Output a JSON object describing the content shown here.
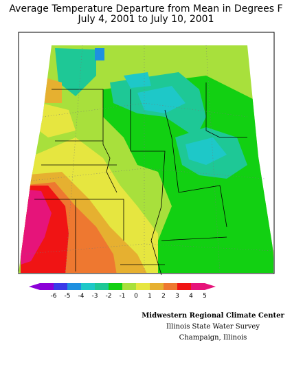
{
  "title": {
    "line1": "Average Temperature Departure from Mean in Degrees F",
    "line2": "July 4, 2001 to July 10, 2001"
  },
  "legend": {
    "ticks": [
      "-6",
      "-5",
      "-4",
      "-3",
      "-2",
      "-1",
      "0",
      "1",
      "2",
      "3",
      "4",
      "5"
    ],
    "colors": [
      "#8c00d8",
      "#3a3ae8",
      "#1e90e0",
      "#1ec8c8",
      "#1ec896",
      "#12d012",
      "#a8e03c",
      "#e6e640",
      "#e6b030",
      "#ee7830",
      "#f01414",
      "#e6147a"
    ]
  },
  "credits": {
    "line1": "Midwestern Regional Climate Center",
    "line2": "Illinois State Water Survey",
    "line3": "Champaign, Illinois"
  }
}
